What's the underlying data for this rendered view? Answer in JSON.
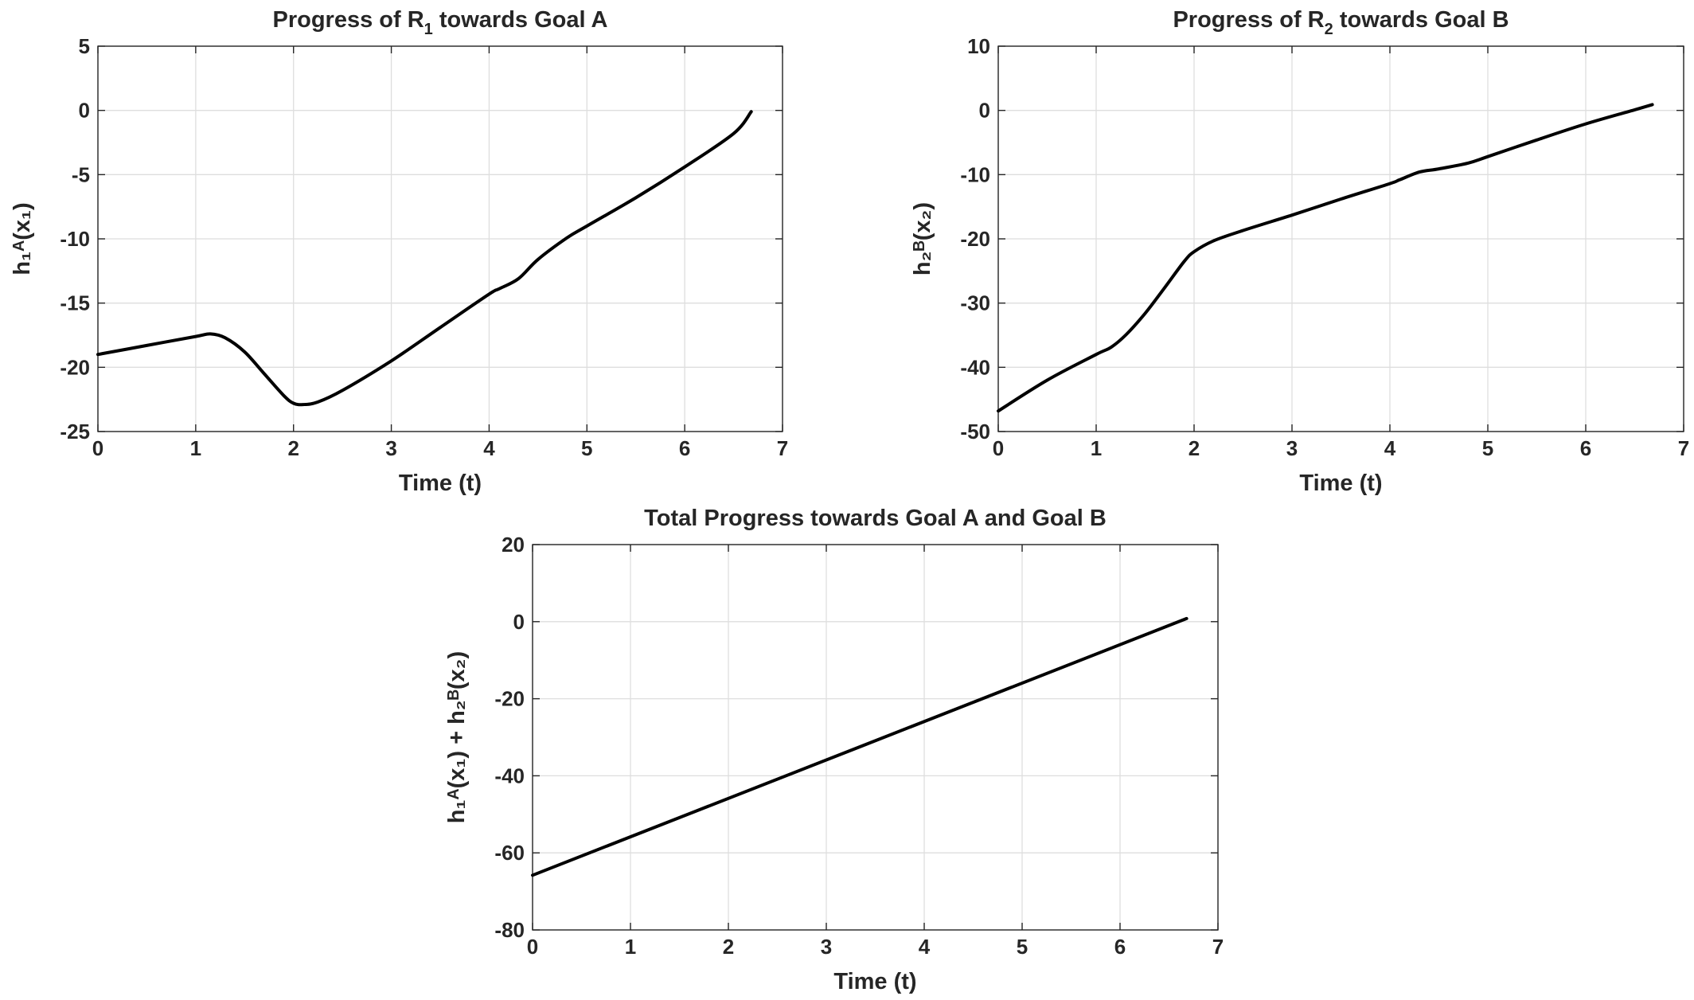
{
  "chart_data": [
    {
      "type": "line",
      "title": "Progress of R₁ towards Goal A",
      "title_parts": [
        "Progress of R",
        "1",
        " towards Goal A"
      ],
      "xlabel": "Time (t)",
      "ylabel": "h₁ᴬ(x₁)",
      "xlim": [
        0,
        7
      ],
      "ylim": [
        -25,
        5
      ],
      "xticks": [
        0,
        1,
        2,
        3,
        4,
        5,
        6,
        7
      ],
      "yticks": [
        5,
        0,
        -5,
        -10,
        -15,
        -20,
        -25
      ],
      "grid": true,
      "series": [
        {
          "color": "#000000",
          "x": [
            0,
            0.5,
            1.0,
            1.15,
            1.3,
            1.5,
            1.7,
            1.9,
            2.0,
            2.1,
            2.25,
            2.5,
            3.0,
            3.5,
            4.0,
            4.1,
            4.3,
            4.5,
            4.8,
            5.0,
            5.5,
            6.0,
            6.5,
            6.68
          ],
          "y": [
            -19.0,
            -18.3,
            -17.6,
            -17.4,
            -17.7,
            -18.8,
            -20.5,
            -22.2,
            -22.8,
            -22.9,
            -22.7,
            -21.8,
            -19.5,
            -16.9,
            -14.3,
            -13.9,
            -13.1,
            -11.6,
            -9.9,
            -9.0,
            -6.8,
            -4.4,
            -1.8,
            -0.1
          ]
        }
      ]
    },
    {
      "type": "line",
      "title": "Progress of R₂ towards Goal B",
      "title_parts": [
        "Progress of R",
        "2",
        " towards Goal B"
      ],
      "xlabel": "Time (t)",
      "ylabel": "h₂ᴮ(x₂)",
      "xlim": [
        0,
        7
      ],
      "ylim": [
        -50,
        10
      ],
      "xticks": [
        0,
        1,
        2,
        3,
        4,
        5,
        6,
        7
      ],
      "yticks": [
        10,
        0,
        -10,
        -20,
        -30,
        -40,
        -50
      ],
      "grid": true,
      "series": [
        {
          "color": "#000000",
          "x": [
            0,
            0.5,
            1.0,
            1.15,
            1.3,
            1.5,
            1.7,
            1.9,
            2.0,
            2.2,
            2.5,
            3.0,
            3.5,
            4.0,
            4.1,
            4.3,
            4.5,
            4.8,
            5.0,
            5.5,
            6.0,
            6.5,
            6.68
          ],
          "y": [
            -46.8,
            -42.0,
            -38.0,
            -36.9,
            -35.0,
            -31.6,
            -27.6,
            -23.5,
            -22.0,
            -20.3,
            -18.7,
            -16.3,
            -13.8,
            -11.4,
            -10.8,
            -9.6,
            -9.1,
            -8.2,
            -7.2,
            -4.6,
            -2.1,
            0.1,
            0.9
          ]
        }
      ]
    },
    {
      "type": "line",
      "title": "Total Progress towards Goal A and Goal B",
      "xlabel": "Time (t)",
      "ylabel": "h₁ᴬ(x₁) + h₂ᴮ(x₂)",
      "xlim": [
        0,
        7
      ],
      "ylim": [
        -80,
        20
      ],
      "xticks": [
        0,
        1,
        2,
        3,
        4,
        5,
        6,
        7
      ],
      "yticks": [
        20,
        0,
        -20,
        -40,
        -60,
        -80
      ],
      "grid": true,
      "series": [
        {
          "color": "#000000",
          "x": [
            0,
            6.68
          ],
          "y": [
            -65.8,
            0.8
          ]
        }
      ]
    }
  ]
}
